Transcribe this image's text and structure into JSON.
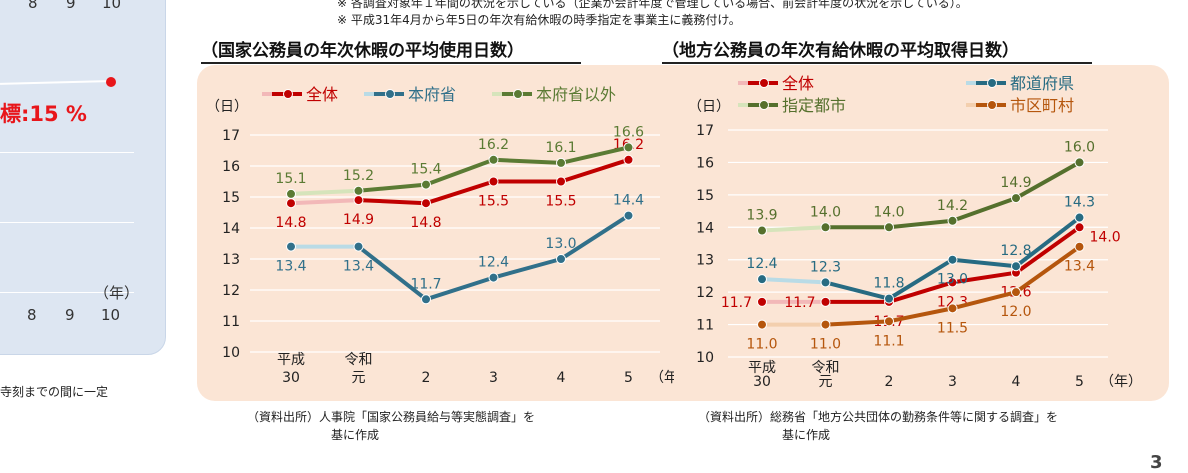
{
  "notes": {
    "line1": "※ 各調査対象年１年間の状況を示している（企業が会計年度で管理している場合、前会計年度の状況を示している）。",
    "line2": "※ 平成31年4月から年5日の年次有給休暇の時季指定を事業主に義務付け。"
  },
  "left_fragment": {
    "top_ticks": [
      "8",
      "9",
      "10"
    ],
    "target_label": "標:15 %",
    "bottom_ticks": [
      "8",
      "9",
      "10"
    ],
    "year_unit": "（年）",
    "footnote": "寺刻までの間に一定"
  },
  "page_number": "3",
  "chart_data": [
    {
      "type": "line",
      "title": "（国家公務員の年次休暇の平均使用日数）",
      "ylabel": "（日）",
      "xlabel": "（年）",
      "ylim": [
        10,
        17
      ],
      "yticks": [
        "10",
        "11",
        "12",
        "13",
        "14",
        "15",
        "16",
        "17"
      ],
      "categories": [
        "平成\n30",
        "令和\n元",
        "2",
        "3",
        "4",
        "5"
      ],
      "series": [
        {
          "name": "全体",
          "color": "#c00000",
          "fade": "#f2b8b8",
          "values": [
            14.8,
            14.9,
            14.8,
            15.5,
            15.5,
            16.2
          ],
          "labels": [
            "14.8",
            "14.9",
            "14.8",
            "15.5",
            "15.5",
            "16.2"
          ],
          "lpos": [
            "b",
            "b",
            "b",
            "b",
            "b",
            "a"
          ]
        },
        {
          "name": "本府省",
          "color": "#31708a",
          "fade": "#b9dbe6",
          "values": [
            13.4,
            13.4,
            11.7,
            12.4,
            13.0,
            14.4
          ],
          "labels": [
            "13.4",
            "13.4",
            "11.7",
            "12.4",
            "13.0",
            "14.4"
          ],
          "lpos": [
            "b",
            "b",
            "a",
            "a",
            "a",
            "a"
          ]
        },
        {
          "name": "本府省以外",
          "color": "#5b7b34",
          "fade": "#d6e4bb",
          "values": [
            15.1,
            15.2,
            15.4,
            16.2,
            16.1,
            16.6
          ],
          "labels": [
            "15.1",
            "15.2",
            "15.4",
            "16.2",
            "16.1",
            "16.6"
          ],
          "lpos": [
            "a",
            "a",
            "a",
            "a",
            "a",
            "a"
          ]
        }
      ],
      "source": "（資料出所）人事院「国家公務員給与等実態調査」を\n　　　　　　　基に作成"
    },
    {
      "type": "line",
      "title": "（地方公務員の年次有給休暇の平均取得日数）",
      "ylabel": "（日）",
      "xlabel": "（年）",
      "ylim": [
        10,
        17
      ],
      "yticks": [
        "10",
        "11",
        "12",
        "13",
        "14",
        "15",
        "16",
        "17"
      ],
      "categories": [
        "平成\n30",
        "令和\n元",
        "2",
        "3",
        "4",
        "5"
      ],
      "series": [
        {
          "name": "全体",
          "color": "#c00000",
          "fade": "#f2b8b8",
          "values": [
            11.7,
            11.7,
            11.7,
            12.3,
            12.6,
            14.0
          ],
          "labels": [
            "11.7",
            "11.7",
            "11.7",
            "12.3",
            "12.6",
            "14.0"
          ],
          "lpos": [
            "l",
            "l",
            "b",
            "b",
            "b",
            "r"
          ]
        },
        {
          "name": "都道府県",
          "color": "#276b82",
          "fade": "#b9dbe6",
          "values": [
            12.4,
            12.3,
            11.8,
            13.0,
            12.8,
            14.3
          ],
          "labels": [
            "12.4",
            "12.3",
            "11.8",
            "13.0",
            "12.8",
            "14.3"
          ],
          "lpos": [
            "a",
            "a",
            "a",
            "b",
            "a",
            "a"
          ]
        },
        {
          "name": "指定都市",
          "color": "#55702d",
          "fade": "#d6e4bb",
          "values": [
            13.9,
            14.0,
            14.0,
            14.2,
            14.9,
            16.0
          ],
          "labels": [
            "13.9",
            "14.0",
            "14.0",
            "14.2",
            "14.9",
            "16.0"
          ],
          "lpos": [
            "a",
            "a",
            "a",
            "a",
            "a",
            "a"
          ]
        },
        {
          "name": "市区町村",
          "color": "#b5560d",
          "fade": "#f3cfae",
          "values": [
            11.0,
            11.0,
            11.1,
            11.5,
            12.0,
            13.4
          ],
          "labels": [
            "11.0",
            "11.0",
            "11.1",
            "11.5",
            "12.0",
            "13.4"
          ],
          "lpos": [
            "b",
            "b",
            "b",
            "b",
            "b",
            "b"
          ]
        }
      ],
      "source": "（資料出所）総務省「地方公共団体の勤務条件等に関する調査」を\n　　　　　　　基に作成"
    }
  ]
}
